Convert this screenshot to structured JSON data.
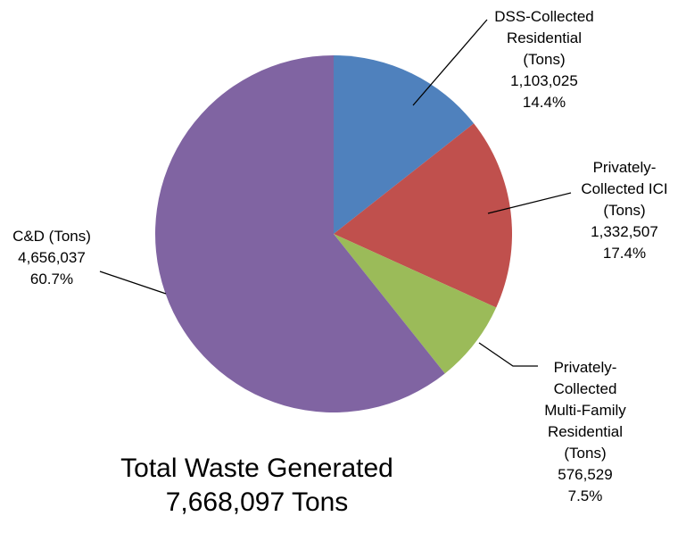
{
  "chart_data": {
    "type": "pie",
    "slices": [
      {
        "label": [
          "DSS-Collected",
          "Residential",
          "(Tons)"
        ],
        "value": 1103025,
        "value_label": "1,103,025",
        "percent": 14.4,
        "percent_label": "14.4%",
        "color": "#4F81BD"
      },
      {
        "label": [
          "Privately-",
          "Collected ICI",
          "(Tons)"
        ],
        "value": 1332507,
        "value_label": "1,332,507",
        "percent": 17.4,
        "percent_label": "17.4%",
        "color": "#C0504D"
      },
      {
        "label": [
          "Privately-",
          "Collected",
          "Multi-Family",
          "Residential",
          "(Tons)"
        ],
        "value": 576529,
        "value_label": "576,529",
        "percent": 7.5,
        "percent_label": "7.5%",
        "color": "#9BBB59"
      },
      {
        "label": [
          "C&D (Tons)"
        ],
        "value": 4656037,
        "value_label": "4,656,037",
        "percent": 60.7,
        "percent_label": "60.7%",
        "color": "#8064A2"
      }
    ],
    "start_angle": "12 o'clock",
    "direction": "clockwise",
    "legend": "none"
  },
  "caption": {
    "line1": "Total Waste Generated",
    "line2": "7,668,097 Tons"
  }
}
